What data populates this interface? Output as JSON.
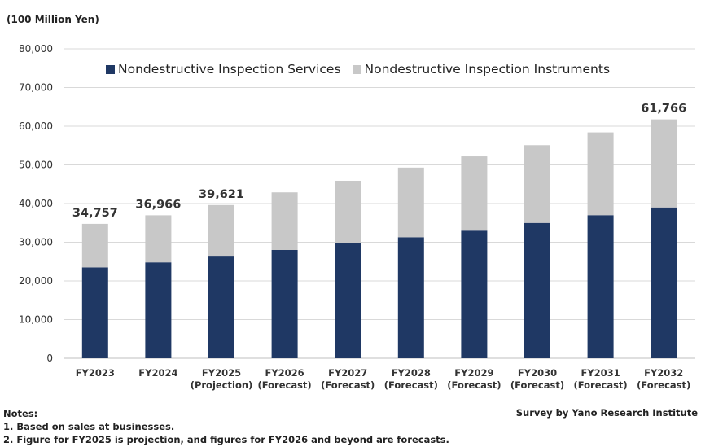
{
  "unit_label": "(100 Million Yen)",
  "source": "Survey by Yano Research Institute",
  "notes": {
    "heading": "Notes:",
    "lines": [
      "1. Based on sales at businesses.",
      "2. Figure for FY2025 is projection, and figures for FY2026 and beyond are forecasts."
    ]
  },
  "colors": {
    "services": "#1f3864",
    "instruments": "#c8c8c8",
    "grid": "#d9d9d9"
  },
  "chart_data": {
    "type": "bar",
    "stacked": true,
    "title": "",
    "ylabel": "(100 Million Yen)",
    "ylim": [
      0,
      80000
    ],
    "yticks": [
      "0",
      "10,000",
      "20,000",
      "30,000",
      "40,000",
      "50,000",
      "60,000",
      "70,000",
      "80,000"
    ],
    "categories": [
      [
        "FY2023"
      ],
      [
        "FY2024"
      ],
      [
        "FY2025",
        "(Projection)"
      ],
      [
        "FY2026",
        "(Forecast)"
      ],
      [
        "FY2027",
        "(Forecast)"
      ],
      [
        "FY2028",
        "(Forecast)"
      ],
      [
        "FY2029",
        "(Forecast)"
      ],
      [
        "FY2030",
        "(Forecast)"
      ],
      [
        "FY2031",
        "(Forecast)"
      ],
      [
        "FY2032",
        "(Forecast)"
      ]
    ],
    "series": [
      {
        "name": "Nondestructive Inspection Services",
        "values": [
          23500,
          24800,
          26300,
          28000,
          29700,
          31300,
          33000,
          35000,
          37000,
          39000
        ]
      },
      {
        "name": "Nondestructive Inspection Instruments",
        "values": [
          11257,
          12166,
          13321,
          14900,
          16200,
          18000,
          19200,
          20100,
          21400,
          22766
        ]
      }
    ],
    "totals": [
      34757,
      36966,
      39621,
      null,
      null,
      null,
      null,
      null,
      null,
      61766
    ],
    "total_labels": [
      "34,757",
      "36,966",
      "39,621",
      "",
      "",
      "",
      "",
      "",
      "",
      "61,766"
    ],
    "legend_position": "top"
  }
}
